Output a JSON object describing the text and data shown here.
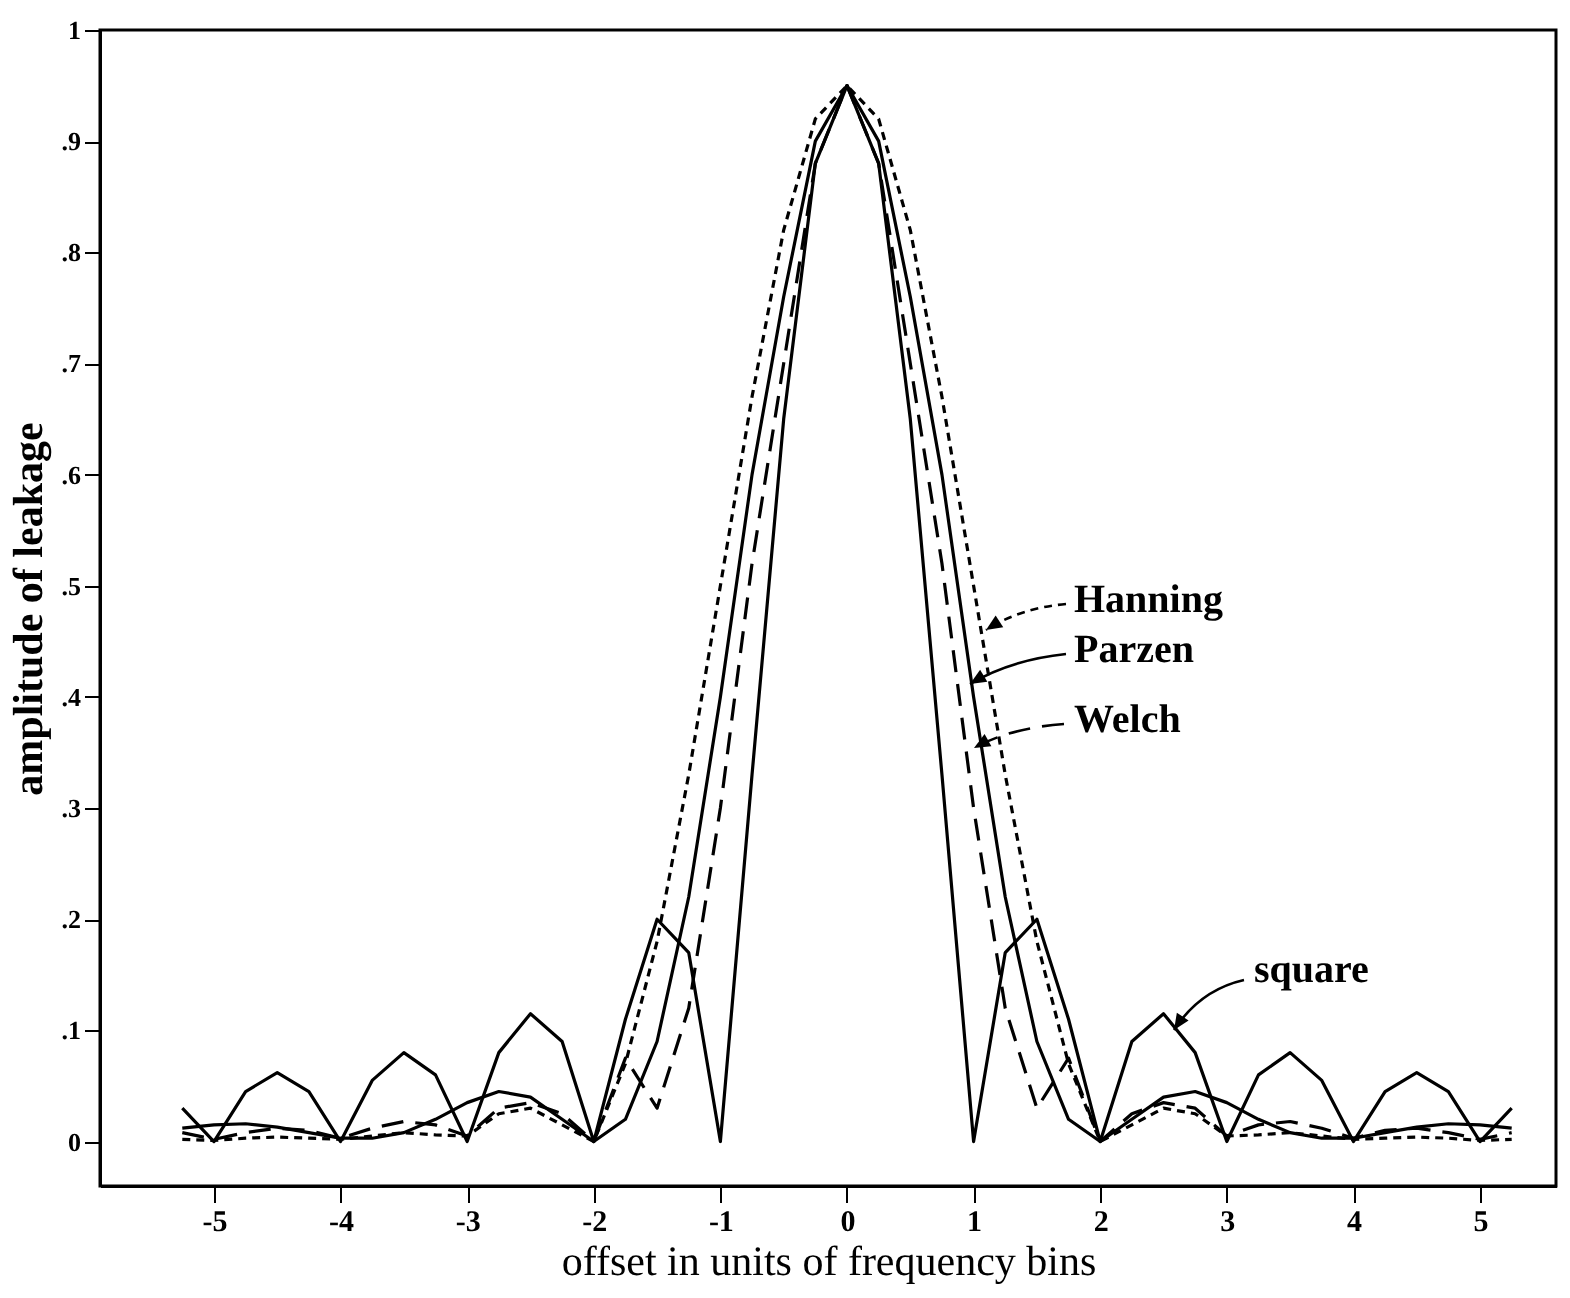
{
  "chart_data": {
    "type": "line",
    "xlabel": "offset in units of frequency bins",
    "ylabel": "amplitude of leakage",
    "x": [
      -5.25,
      -5,
      -4.75,
      -4.5,
      -4.25,
      -4,
      -3.75,
      -3.5,
      -3.25,
      -3,
      -2.75,
      -2.5,
      -2.25,
      -2,
      -1.75,
      -1.5,
      -1.25,
      -1,
      -0.75,
      -0.5,
      -0.25,
      0,
      0.25,
      0.5,
      0.75,
      1,
      1.25,
      1.5,
      1.75,
      2,
      2.25,
      2.5,
      2.75,
      3,
      3.25,
      3.5,
      3.75,
      4,
      4.25,
      4.5,
      4.75,
      5,
      5.25
    ],
    "series": [
      {
        "name": "square",
        "color": "#000000",
        "line_style": "solid",
        "values": [
          0.03,
          0,
          0.045,
          0.062,
          0.045,
          0,
          0.055,
          0.08,
          0.06,
          0,
          0.08,
          0.115,
          0.09,
          0,
          0.11,
          0.2,
          0.17,
          0,
          0.33,
          0.65,
          0.88,
          0.95,
          0.88,
          0.65,
          0.33,
          0,
          0.17,
          0.2,
          0.11,
          0,
          0.09,
          0.115,
          0.08,
          0,
          0.06,
          0.08,
          0.055,
          0,
          0.045,
          0.062,
          0.045,
          0,
          0.03
        ]
      },
      {
        "name": "Welch",
        "color": "#000000",
        "line_style": "dashed",
        "values": [
          0.008,
          0.002,
          0.008,
          0.012,
          0.01,
          0.003,
          0.012,
          0.018,
          0.015,
          0.005,
          0.03,
          0.035,
          0.025,
          0,
          0.075,
          0.03,
          0.12,
          0.3,
          0.52,
          0.7,
          0.88,
          0.95,
          0.88,
          0.7,
          0.52,
          0.3,
          0.12,
          0.03,
          0.075,
          0,
          0.025,
          0.035,
          0.03,
          0.005,
          0.015,
          0.018,
          0.012,
          0.003,
          0.01,
          0.012,
          0.008,
          0.002,
          0.008
        ]
      },
      {
        "name": "Parzen",
        "color": "#000000",
        "line_style": "solid",
        "values": [
          0.012,
          0.015,
          0.016,
          0.013,
          0.008,
          0.003,
          0.003,
          0.008,
          0.02,
          0.035,
          0.045,
          0.04,
          0.02,
          0,
          0.02,
          0.09,
          0.22,
          0.4,
          0.6,
          0.76,
          0.9,
          0.95,
          0.9,
          0.76,
          0.6,
          0.4,
          0.22,
          0.09,
          0.02,
          0,
          0.02,
          0.04,
          0.045,
          0.035,
          0.02,
          0.008,
          0.003,
          0.003,
          0.008,
          0.013,
          0.016,
          0.015,
          0.012
        ]
      },
      {
        "name": "Hanning",
        "color": "#000000",
        "line_style": "dotted",
        "values": [
          0.002,
          0.001,
          0.003,
          0.004,
          0.003,
          0.002,
          0.005,
          0.008,
          0.006,
          0.005,
          0.025,
          0.03,
          0.015,
          0,
          0.07,
          0.18,
          0.33,
          0.5,
          0.67,
          0.82,
          0.92,
          0.95,
          0.92,
          0.82,
          0.67,
          0.5,
          0.33,
          0.18,
          0.07,
          0,
          0.015,
          0.03,
          0.025,
          0.005,
          0.006,
          0.008,
          0.005,
          0.002,
          0.003,
          0.004,
          0.003,
          0.001,
          0.002
        ]
      }
    ],
    "legend": "right",
    "xlim": [
      -5.9,
      5.6
    ],
    "xticks": [
      -5,
      -4,
      -3,
      -2,
      -1,
      0,
      1,
      2,
      3,
      4,
      5
    ],
    "ylim": [
      -0.04,
      1
    ],
    "yticks": [
      0,
      {
        "value": 0.1,
        "label": ".1"
      },
      {
        "value": 0.2,
        "label": ".2"
      },
      {
        "value": 0.3,
        "label": ".3"
      },
      {
        "value": 0.4,
        "label": ".4"
      },
      {
        "value": 0.5,
        "label": ".5"
      },
      {
        "value": 0.6,
        "label": ".6"
      },
      {
        "value": 0.7,
        "label": ".7"
      },
      {
        "value": 0.8,
        "label": ".8"
      },
      {
        "value": 0.9,
        "label": ".9"
      },
      1
    ]
  }
}
